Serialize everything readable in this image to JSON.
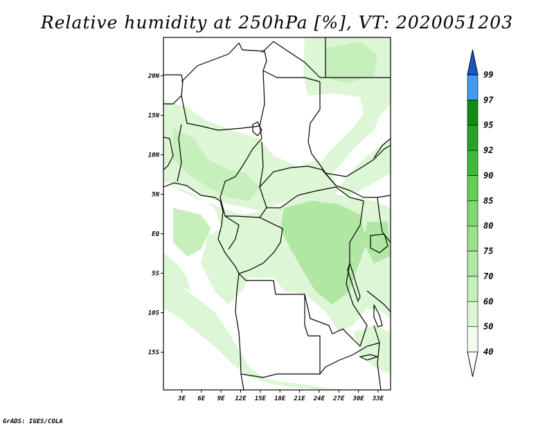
{
  "title": "Relative humidity at 250hPa [%], VT: 2020051203",
  "credit": "GrADS: IGES/COLA",
  "lat_ticks": [
    {
      "lat": 20,
      "label": "20N"
    },
    {
      "lat": 15,
      "label": "15N"
    },
    {
      "lat": 10,
      "label": "10N"
    },
    {
      "lat": 5,
      "label": "5N"
    },
    {
      "lat": 0,
      "label": "EQ"
    },
    {
      "lat": -5,
      "label": "5S"
    },
    {
      "lat": -10,
      "label": "10S"
    },
    {
      "lat": -15,
      "label": "15S"
    }
  ],
  "lon_ticks": [
    {
      "lon": 3,
      "label": "3E"
    },
    {
      "lon": 6,
      "label": "6E"
    },
    {
      "lon": 9,
      "label": "9E"
    },
    {
      "lon": 12,
      "label": "12E"
    },
    {
      "lon": 15,
      "label": "15E"
    },
    {
      "lon": 18,
      "label": "18E"
    },
    {
      "lon": 21,
      "label": "21E"
    },
    {
      "lon": 24,
      "label": "24E"
    },
    {
      "lon": 27,
      "label": "27E"
    },
    {
      "lon": 30,
      "label": "30E"
    },
    {
      "lon": 33,
      "label": "33E"
    }
  ],
  "colorbar": {
    "labels": [
      "40",
      "50",
      "60",
      "70",
      "75",
      "80",
      "85",
      "90",
      "92",
      "95",
      "97",
      "99"
    ],
    "colors": [
      "#f2fdef",
      "#ddf6d5",
      "#c5efbb",
      "#b0e8a3",
      "#99e08a",
      "#7fd870",
      "#62cf58",
      "#3fba3c",
      "#27a228",
      "#108c10",
      "#3f9bf0",
      "#2f7fe8",
      "#1f62cf"
    ],
    "bottom_color": "#ffffff",
    "top_color": "#1a55c8"
  },
  "field_colors": {
    "light": "#ddf6d5",
    "mid": "#c5efbb",
    "dense": "#b0e8a3"
  }
}
